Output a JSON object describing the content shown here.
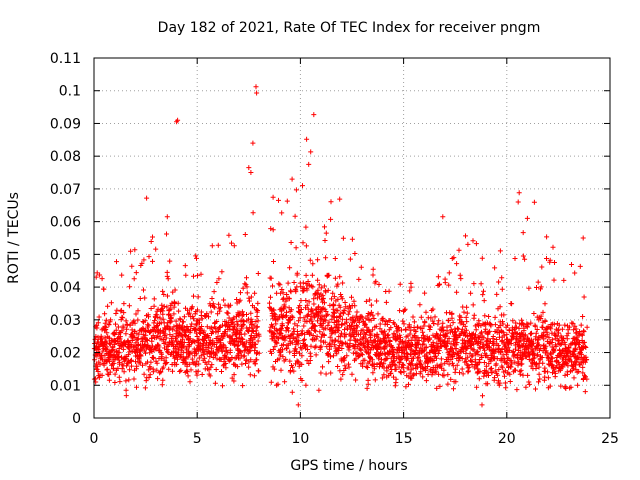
{
  "chart_data": {
    "type": "scatter",
    "title": "Day 182 of 2021, Rate Of TEC Index for receiver pngm",
    "xlabel": "GPS time / hours",
    "ylabel": "ROTI / TECUs",
    "xlim": [
      0,
      25
    ],
    "ylim": [
      0,
      0.11
    ],
    "grid": true,
    "marker": "+",
    "marker_color": "#ff0000",
    "x_ticks": [
      0,
      5,
      10,
      15,
      20,
      25
    ],
    "x_tick_labels": [
      "0",
      "5",
      "10",
      "15",
      "20",
      "25"
    ],
    "y_ticks": [
      0,
      0.01,
      0.02,
      0.03,
      0.04,
      0.05,
      0.06,
      0.07,
      0.08,
      0.09,
      0.1,
      0.11
    ],
    "y_tick_labels": [
      "0",
      "0.01",
      "0.02",
      "0.03",
      "0.04",
      "0.05",
      "0.06",
      "0.07",
      "0.08",
      "0.09",
      "0.1",
      "0.11"
    ],
    "data_gap_hours": [
      8.0,
      8.5
    ],
    "series": [
      {
        "name": "ROTI",
        "envelope_note": "dense cloud of points, approximate per-hour min / typical / max",
        "x": [
          0.5,
          1.5,
          2.5,
          3.5,
          4.5,
          5.5,
          6.5,
          7.5,
          9.0,
          10.0,
          11.0,
          12.0,
          13.0,
          14.0,
          15.0,
          16.0,
          17.0,
          18.0,
          19.0,
          20.0,
          21.0,
          22.0,
          23.0,
          23.8
        ],
        "y_min": [
          0.006,
          0.006,
          0.007,
          0.007,
          0.007,
          0.007,
          0.007,
          0.007,
          0.005,
          0.004,
          0.007,
          0.008,
          0.007,
          0.006,
          0.006,
          0.006,
          0.006,
          0.006,
          0.005,
          0.006,
          0.006,
          0.006,
          0.006,
          0.006
        ],
        "y_typical": [
          0.017,
          0.018,
          0.02,
          0.02,
          0.019,
          0.02,
          0.021,
          0.022,
          0.024,
          0.027,
          0.025,
          0.023,
          0.02,
          0.019,
          0.018,
          0.018,
          0.019,
          0.019,
          0.018,
          0.018,
          0.019,
          0.018,
          0.017,
          0.017
        ],
        "y_max": [
          0.049,
          0.048,
          0.067,
          0.059,
          0.05,
          0.054,
          0.058,
          0.063,
          0.07,
          0.085,
          0.068,
          0.067,
          0.049,
          0.044,
          0.049,
          0.044,
          0.044,
          0.061,
          0.048,
          0.054,
          0.069,
          0.061,
          0.048,
          0.055
        ],
        "notable_points": [
          {
            "x": 4.0,
            "y": 0.0905
          },
          {
            "x": 4.05,
            "y": 0.091
          },
          {
            "x": 7.85,
            "y": 0.1012
          },
          {
            "x": 7.88,
            "y": 0.0993
          },
          {
            "x": 7.7,
            "y": 0.084
          },
          {
            "x": 7.5,
            "y": 0.0765
          },
          {
            "x": 7.6,
            "y": 0.075
          },
          {
            "x": 10.3,
            "y": 0.0852
          },
          {
            "x": 10.5,
            "y": 0.0813
          },
          {
            "x": 10.65,
            "y": 0.0927
          },
          {
            "x": 10.4,
            "y": 0.0775
          },
          {
            "x": 9.6,
            "y": 0.073
          },
          {
            "x": 10.1,
            "y": 0.071
          },
          {
            "x": 2.55,
            "y": 0.0672
          },
          {
            "x": 3.55,
            "y": 0.0615
          },
          {
            "x": 16.9,
            "y": 0.0615
          },
          {
            "x": 20.6,
            "y": 0.0688
          },
          {
            "x": 20.55,
            "y": 0.066
          },
          {
            "x": 21.0,
            "y": 0.061
          },
          {
            "x": 23.7,
            "y": 0.055
          },
          {
            "x": 18.8,
            "y": 0.004
          },
          {
            "x": 9.9,
            "y": 0.004
          }
        ]
      }
    ]
  }
}
